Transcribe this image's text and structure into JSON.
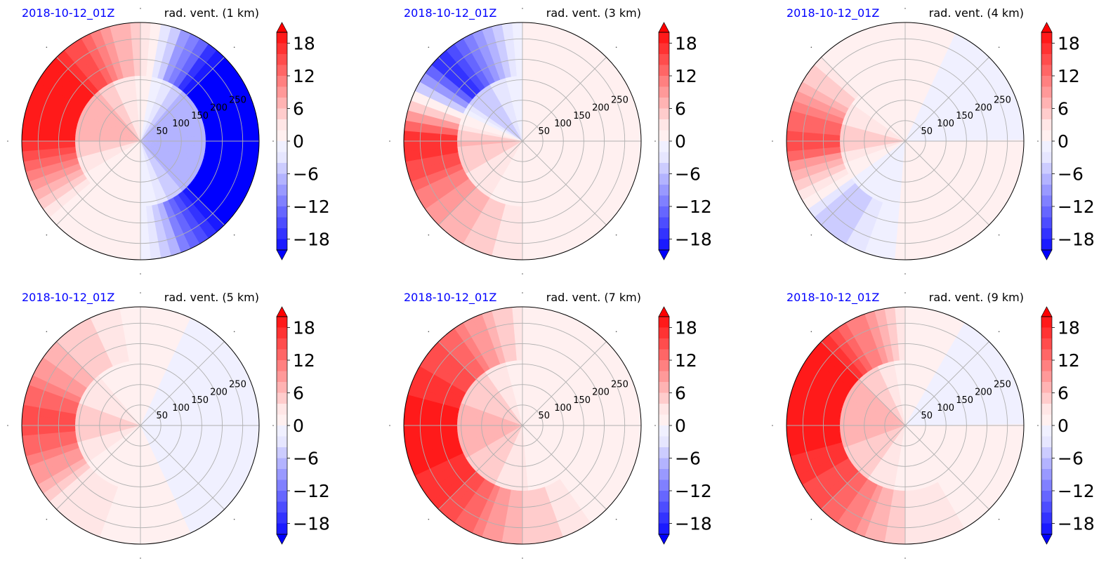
{
  "figure": {
    "colors": {
      "date_label": "#0000ff",
      "title": "#000000",
      "grid": "#b0b0b0",
      "outline": "#000000",
      "ramp_negative": [
        "#0000ff",
        "#1a1aff",
        "#3333ff",
        "#4d4dff",
        "#6666ff",
        "#8080ff",
        "#9999ff",
        "#b3b3ff",
        "#ccccff",
        "#e6e6ff",
        "#f0f0ff"
      ],
      "ramp_positive": [
        "#fff0f0",
        "#ffe6e6",
        "#ffcccc",
        "#ffb3b3",
        "#ff9999",
        "#ff8080",
        "#ff6666",
        "#ff4d4d",
        "#ff3333",
        "#ff1a1a",
        "#ff0000"
      ]
    }
  },
  "chart_data": [
    {
      "type": "polar-contour",
      "date_label": "2018-10-12_01Z",
      "title": "rad. vent. (1 km)",
      "radial_ticks": [
        "50",
        "100",
        "150",
        "200",
        "250"
      ],
      "radial_lim": [
        0,
        290
      ],
      "colorbar": {
        "ticks": [
          "18",
          "12",
          "6",
          "0",
          "−6",
          "−12",
          "−18"
        ],
        "vmin": -20,
        "vmax": 20,
        "extend": "both"
      },
      "field_mean_by_sector": {
        "north-west": 18,
        "north": 4,
        "north-east": -20,
        "south-east": -20,
        "south": 0,
        "south-west": 0,
        "west": 18
      }
    },
    {
      "type": "polar-contour",
      "date_label": "2018-10-12_01Z",
      "title": "rad. vent. (3 km)",
      "radial_ticks": [
        "50",
        "100",
        "150",
        "200",
        "250"
      ],
      "radial_lim": [
        0,
        290
      ],
      "colorbar": {
        "ticks": [
          "18",
          "12",
          "6",
          "0",
          "−6",
          "−12",
          "−18"
        ],
        "vmin": -20,
        "vmax": 20,
        "extend": "both"
      },
      "field_mean_by_sector": {
        "north-west": -18,
        "north": 1,
        "north-east": 1,
        "south-east": 1,
        "south": 2,
        "south-west": 8,
        "west": 18
      }
    },
    {
      "type": "polar-contour",
      "date_label": "2018-10-12_01Z",
      "title": "rad. vent. (4 km)",
      "radial_ticks": [
        "50",
        "100",
        "150",
        "200",
        "250"
      ],
      "radial_lim": [
        0,
        290
      ],
      "colorbar": {
        "ticks": [
          "18",
          "12",
          "6",
          "0",
          "−6",
          "−12",
          "−18"
        ],
        "vmin": -20,
        "vmax": 20,
        "extend": "both"
      },
      "field_mean_by_sector": {
        "north-west": 2,
        "north": 1,
        "north-east": -1,
        "south-east": 1,
        "south": 1,
        "south-west": -6,
        "west": 16
      }
    },
    {
      "type": "polar-contour",
      "date_label": "2018-10-12_01Z",
      "title": "rad. vent. (5 km)",
      "radial_ticks": [
        "50",
        "100",
        "150",
        "200",
        "250"
      ],
      "radial_lim": [
        0,
        290
      ],
      "colorbar": {
        "ticks": [
          "18",
          "12",
          "6",
          "0",
          "−6",
          "−12",
          "−18"
        ],
        "vmin": -20,
        "vmax": 20,
        "extend": "both"
      },
      "field_mean_by_sector": {
        "north-west": 6,
        "north": 1,
        "north-east": -1,
        "south-east": -1,
        "south": 1,
        "south-west": 3,
        "west": 16
      }
    },
    {
      "type": "polar-contour",
      "date_label": "2018-10-12_01Z",
      "title": "rad. vent. (7 km)",
      "radial_ticks": [
        "50",
        "100",
        "150",
        "200",
        "250"
      ],
      "radial_lim": [
        0,
        290
      ],
      "colorbar": {
        "ticks": [
          "18",
          "12",
          "6",
          "0",
          "−6",
          "−12",
          "−18"
        ],
        "vmin": -20,
        "vmax": 20,
        "extend": "both"
      },
      "field_mean_by_sector": {
        "north-west": 14,
        "north": 2,
        "north-east": 1,
        "south-east": 1,
        "south": 6,
        "south-west": 16,
        "west": 20
      }
    },
    {
      "type": "polar-contour",
      "date_label": "2018-10-12_01Z",
      "title": "rad. vent. (9 km)",
      "radial_ticks": [
        "50",
        "100",
        "150",
        "200",
        "250"
      ],
      "radial_lim": [
        0,
        290
      ],
      "colorbar": {
        "ticks": [
          "18",
          "12",
          "6",
          "0",
          "−6",
          "−12",
          "−18"
        ],
        "vmin": -20,
        "vmax": 20,
        "extend": "both"
      },
      "field_mean_by_sector": {
        "north-west": 18,
        "north": 2,
        "north-east": -1,
        "south-east": 1,
        "south": 4,
        "south-west": 14,
        "west": 20
      }
    }
  ]
}
